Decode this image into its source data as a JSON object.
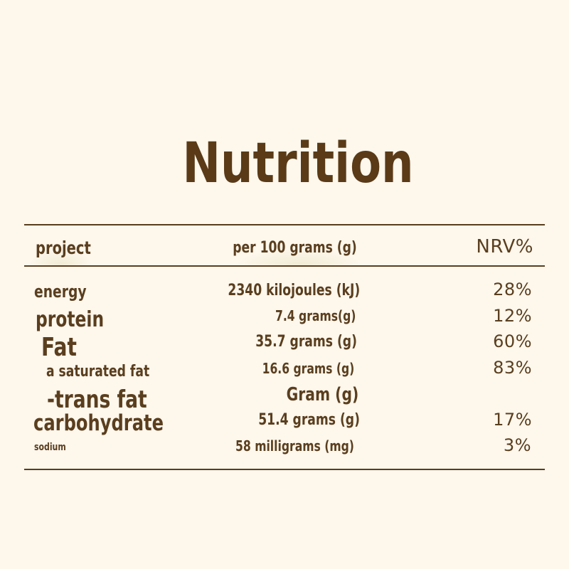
{
  "title": "Nutrition",
  "columns": {
    "item": "project",
    "per100": "per 100 grams (g)",
    "nrv": "NRV%"
  },
  "rows": [
    {
      "item": "energy",
      "per100": "2340 kilojoules (kJ)",
      "nrv": "28%"
    },
    {
      "item": "protein",
      "per100": "7.4 grams(g)",
      "nrv": "12%"
    },
    {
      "item": "Fat",
      "per100": "35.7 grams (g)",
      "nrv": "60%"
    },
    {
      "item": "a saturated fat",
      "per100": "16.6 grams (g)",
      "nrv": "83%"
    },
    {
      "item": "-trans fat",
      "per100": "Gram (g)",
      "nrv": ""
    },
    {
      "item": "carbohydrate",
      "per100": "51.4 grams (g)",
      "nrv": "17%"
    },
    {
      "item": "sodium",
      "per100": "58 milligrams (mg)",
      "nrv": "3%"
    }
  ],
  "colors": {
    "background": "#fdf7ec",
    "text": "#5a3e1e"
  }
}
